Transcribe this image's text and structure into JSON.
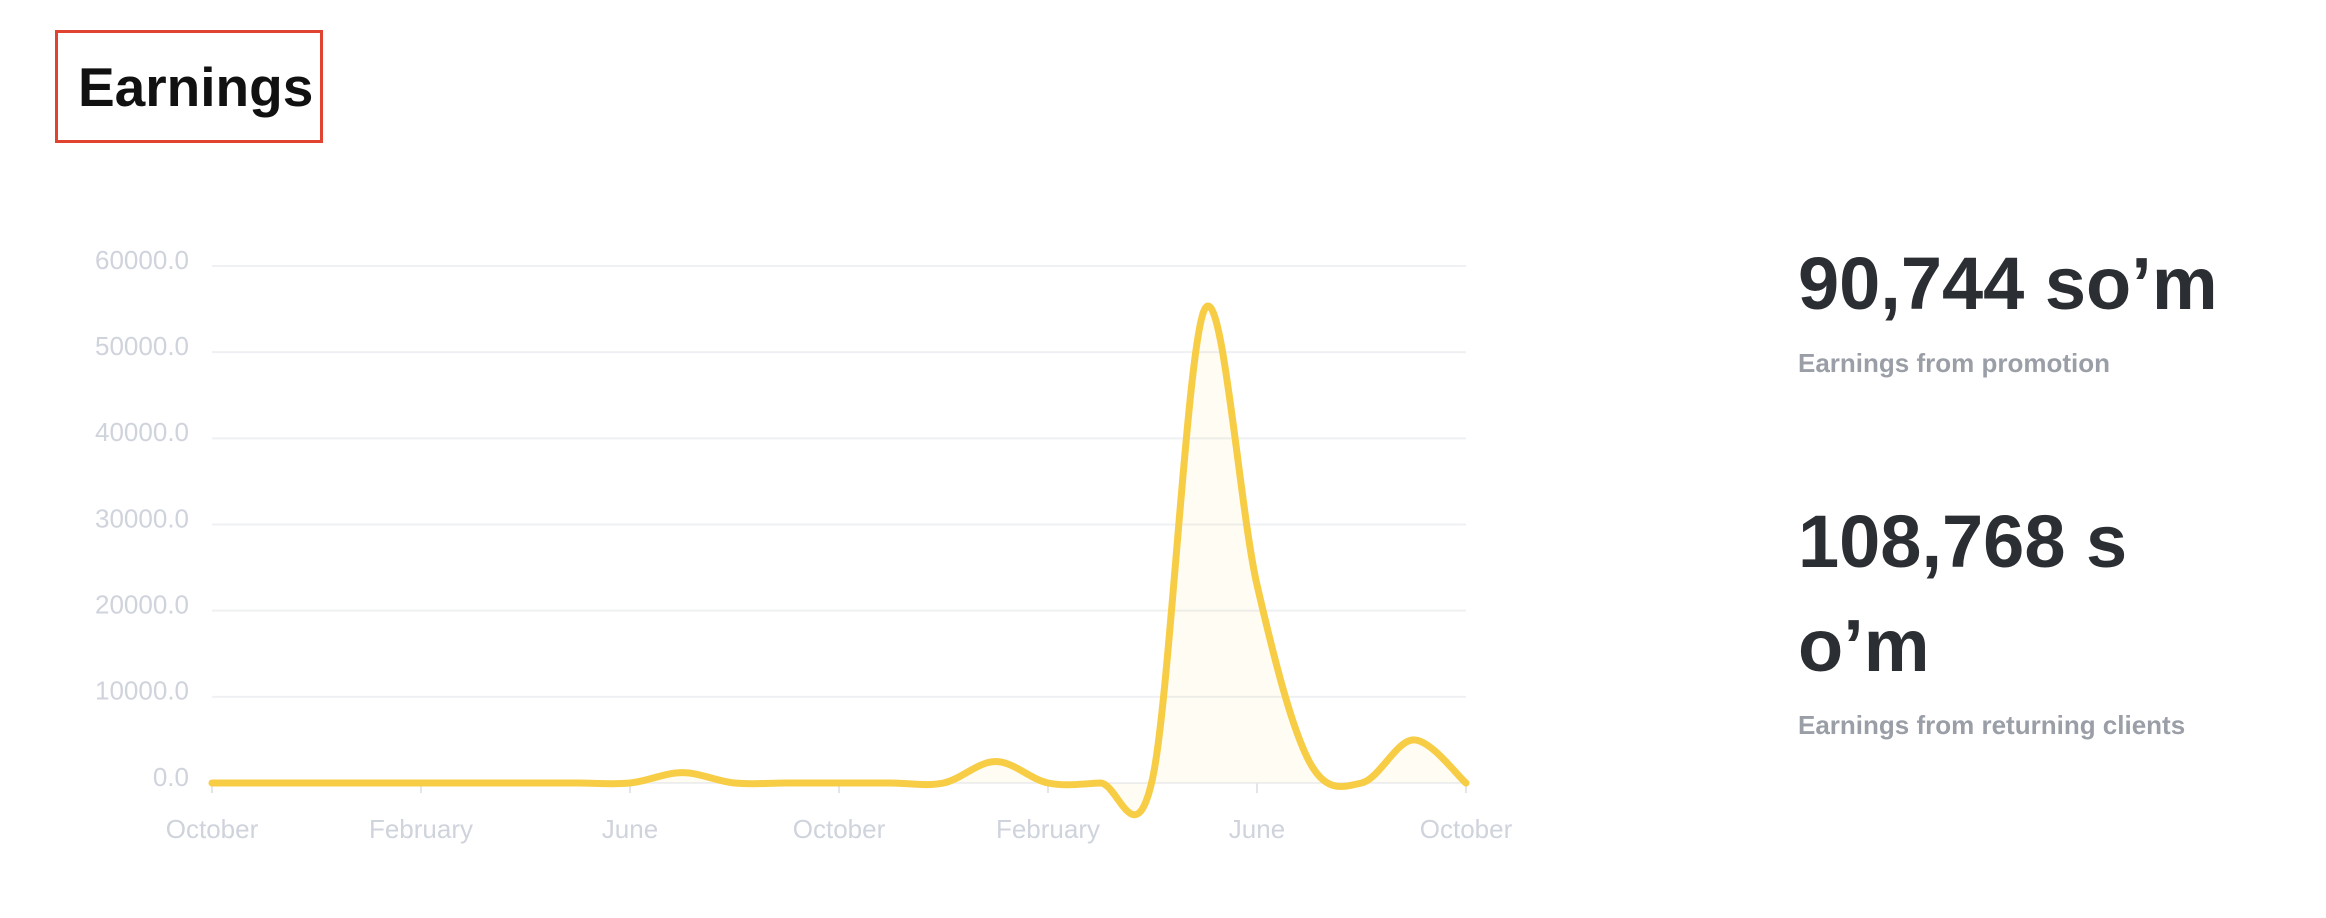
{
  "header": {
    "title": "Earnings"
  },
  "chart_data": {
    "type": "line",
    "categories": [
      "October",
      null,
      null,
      null,
      "February",
      null,
      null,
      null,
      "June",
      null,
      null,
      null,
      "October",
      null,
      null,
      null,
      "February",
      null,
      null,
      null,
      "June",
      null,
      null,
      null,
      "October"
    ],
    "series": [
      {
        "color": "#f7cd46",
        "values": [
          0,
          0,
          0,
          0,
          0,
          0,
          0,
          0,
          0,
          1200,
          0,
          0,
          0,
          0,
          0,
          2500,
          0,
          0,
          500,
          55000,
          23000,
          2500,
          0,
          5000,
          0
        ]
      }
    ],
    "ylim": [
      0,
      60000
    ],
    "yticks": [
      {
        "value": 0,
        "label": "0.0"
      },
      {
        "value": 10000,
        "label": "10000.0"
      },
      {
        "value": 20000,
        "label": "20000.0"
      },
      {
        "value": 30000,
        "label": "30000.0"
      },
      {
        "value": 40000,
        "label": "40000.0"
      },
      {
        "value": 50000,
        "label": "50000.0"
      },
      {
        "value": 60000,
        "label": "60000.0"
      }
    ],
    "grid": true
  },
  "stats": [
    {
      "value": "90,744 so’m",
      "label": "Earnings from promotion"
    },
    {
      "value": "108,768 so’m",
      "label": "Earnings from returning clients"
    }
  ]
}
